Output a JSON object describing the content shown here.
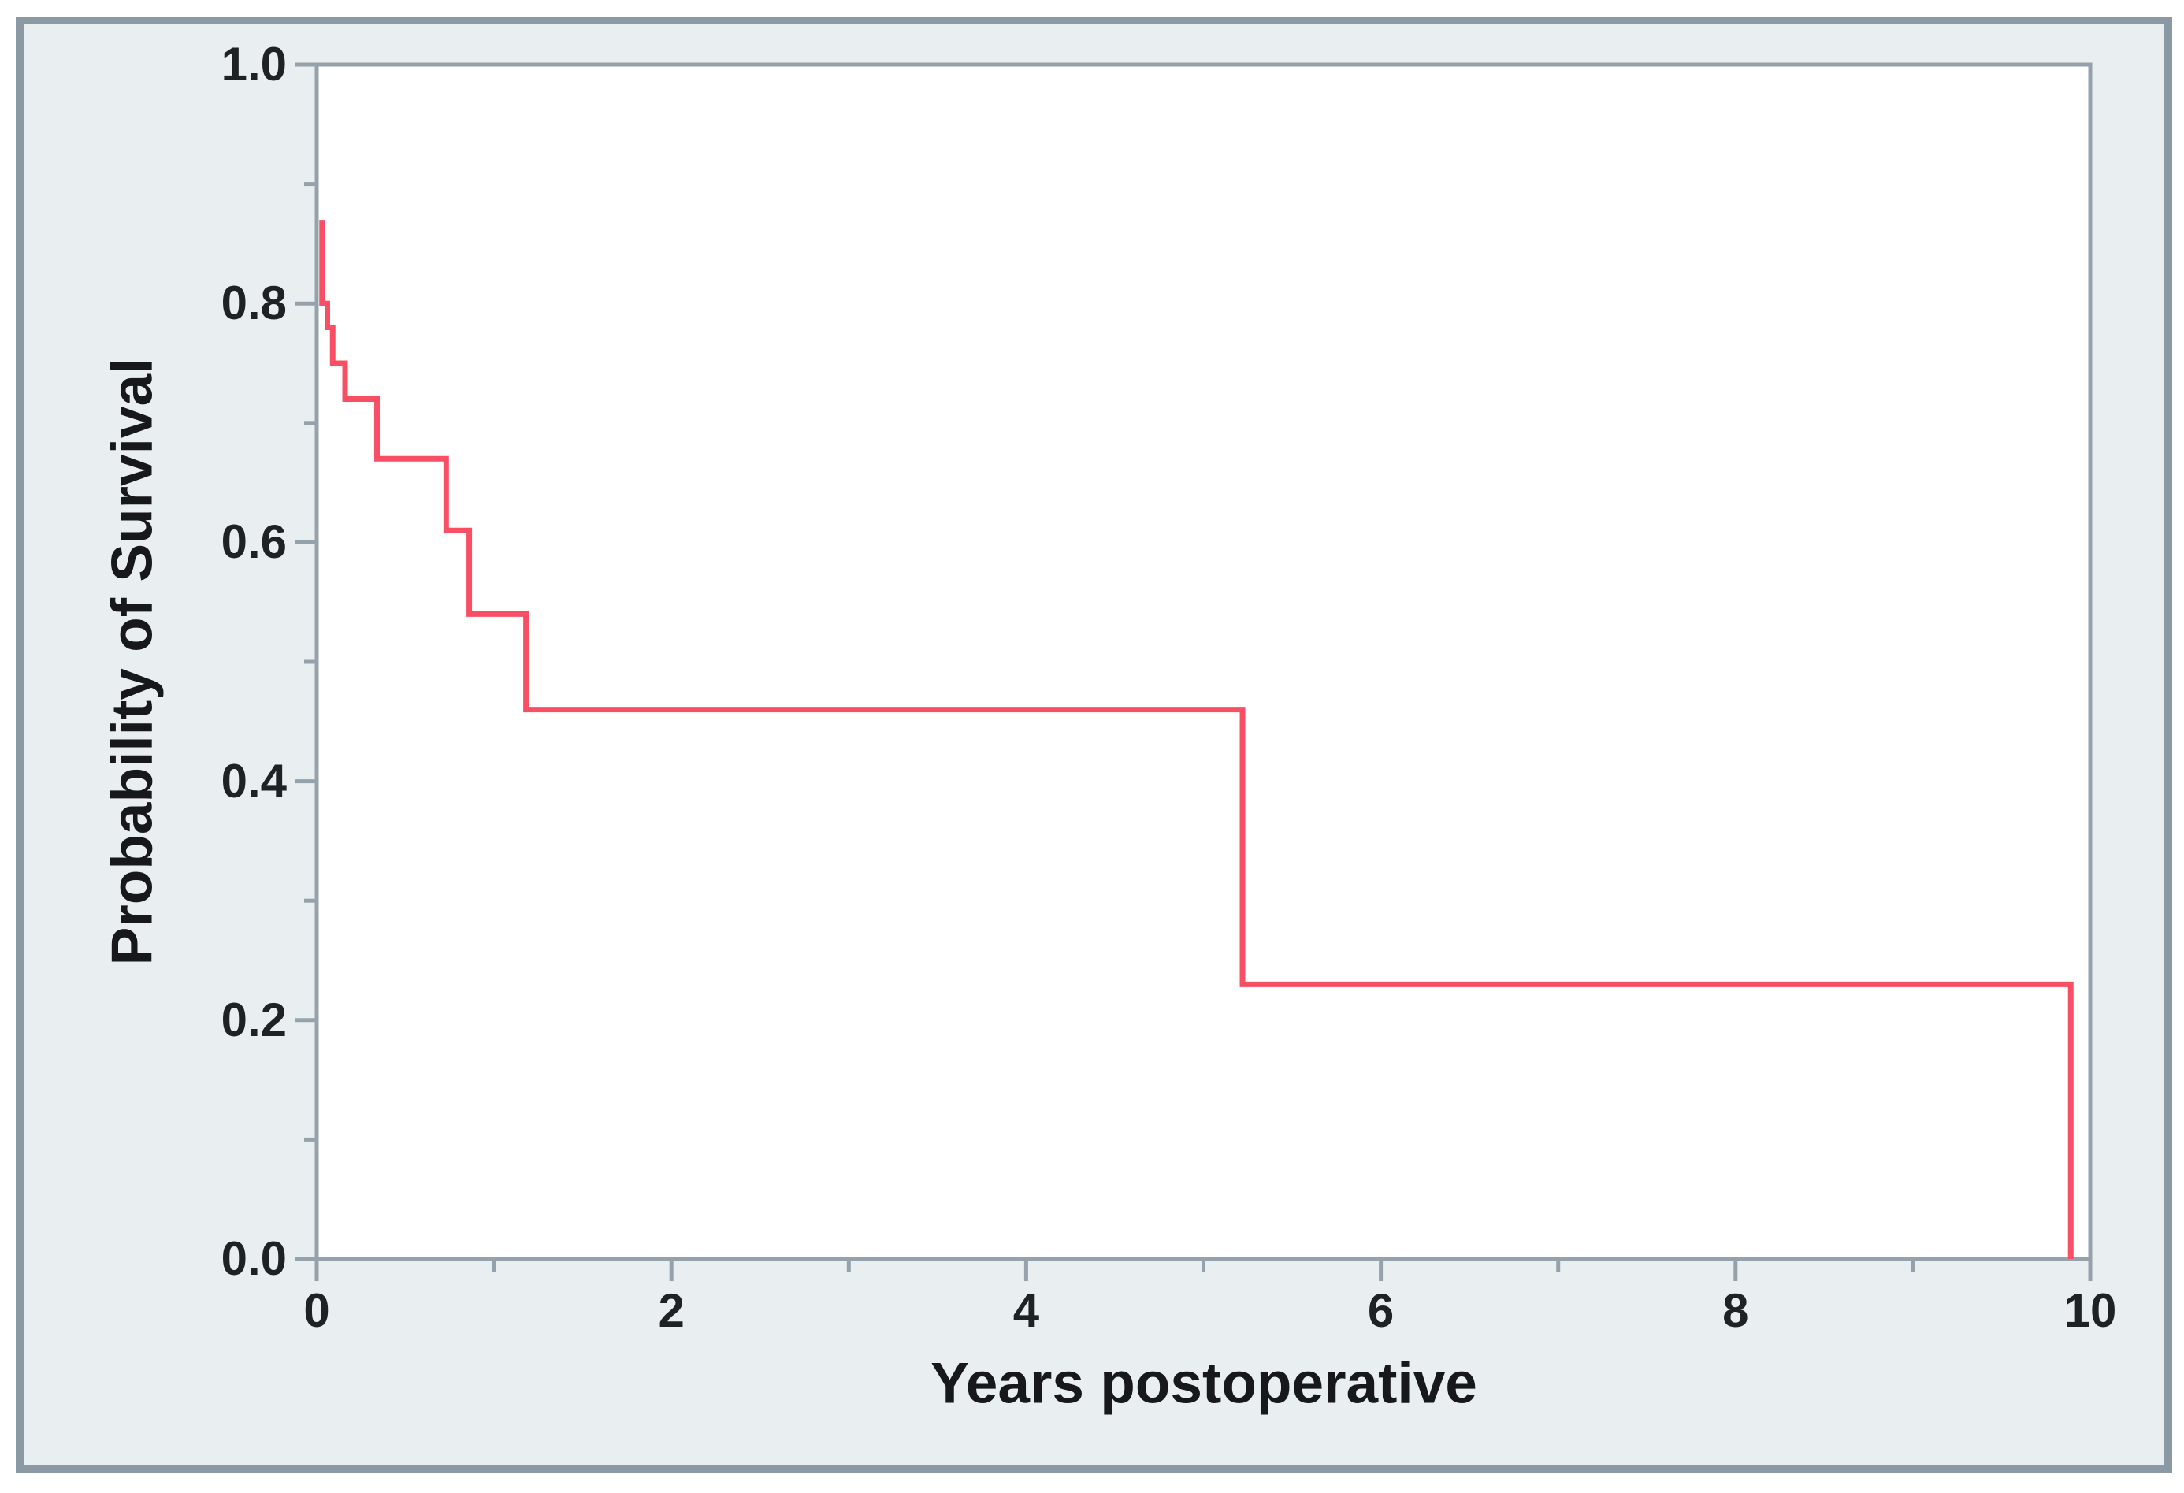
{
  "figure": {
    "kind": "Kaplan-Meier survival plot",
    "x_axis_title": "Years postoperative",
    "y_axis_title": "Probability of Survival"
  },
  "colors": {
    "curve": "#f94f64",
    "axis_frame": "#96a2ab",
    "tick": "#96a2ab",
    "panel_border": "#8b99a4",
    "panel_background": "#e9eef0",
    "plot_background": "#ffffff",
    "text": "#1e2224"
  },
  "chart_data": {
    "type": "line",
    "subtype": "step-survival-curve",
    "title": "",
    "xlabel": "Years postoperative",
    "ylabel": "Probability of Survival",
    "xlim": [
      0,
      10
    ],
    "ylim": [
      0.0,
      1.0
    ],
    "grid": false,
    "legend": null,
    "x_major_ticks": [
      0,
      2,
      4,
      6,
      8,
      10
    ],
    "x_tick_labels": [
      "0",
      "2",
      "4",
      "6",
      "8",
      "10"
    ],
    "x_minor_ticks": [
      1,
      3,
      5,
      7,
      9
    ],
    "y_major_ticks": [
      1.0,
      0.8,
      0.6,
      0.4,
      0.2,
      0.0
    ],
    "y_tick_labels": [
      "1.0",
      "0.8",
      "0.6",
      "0.4",
      "0.2",
      "0.0"
    ],
    "y_minor_ticks": [
      0.9,
      0.7,
      0.5,
      0.3,
      0.1
    ],
    "series": [
      {
        "name": "survival",
        "color": "#f94f64",
        "step_points": [
          [
            0.03,
            0.87
          ],
          [
            0.03,
            0.8
          ],
          [
            0.06,
            0.8
          ],
          [
            0.06,
            0.78
          ],
          [
            0.09,
            0.78
          ],
          [
            0.09,
            0.75
          ],
          [
            0.16,
            0.75
          ],
          [
            0.16,
            0.72
          ],
          [
            0.34,
            0.72
          ],
          [
            0.34,
            0.67
          ],
          [
            0.73,
            0.67
          ],
          [
            0.73,
            0.61
          ],
          [
            0.86,
            0.61
          ],
          [
            0.86,
            0.54
          ],
          [
            1.18,
            0.54
          ],
          [
            1.18,
            0.46
          ],
          [
            5.22,
            0.46
          ],
          [
            5.22,
            0.23
          ],
          [
            9.89,
            0.23
          ],
          [
            9.89,
            0.0
          ]
        ]
      }
    ]
  }
}
